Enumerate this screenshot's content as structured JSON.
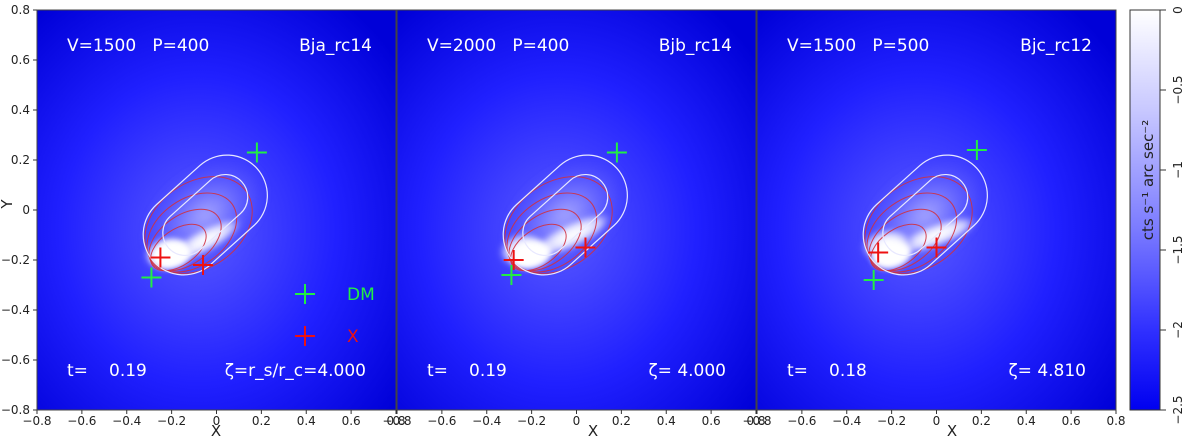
{
  "colors": {
    "background": "#0000ff",
    "core": "#ffffff",
    "contour_gas": "#d03040",
    "contour_mass": "#e8e8ff",
    "marker_dm": "#22ee44",
    "marker_x": "#ee1111",
    "text": "#ffffff"
  },
  "chart_data": [
    {
      "type": "heatmap",
      "panel_title": "Bja_rc14",
      "params": "V=1500   P=400",
      "time_label": "t=",
      "time_value": "0.19",
      "xi_label": "ζ=r_s/r_c=4.000",
      "xlabel": "X",
      "ylabel": "Y",
      "xlim": [
        -0.8,
        0.8
      ],
      "ylim": [
        -0.8,
        0.8
      ],
      "dm_points": [
        {
          "x": 0.18,
          "y": 0.23
        },
        {
          "x": -0.29,
          "y": -0.27
        }
      ],
      "x_points": [
        {
          "x": -0.25,
          "y": -0.19
        },
        {
          "x": -0.06,
          "y": -0.22
        }
      ],
      "legend": [
        {
          "label": "DM",
          "color": "#22ee44"
        },
        {
          "label": "X",
          "color": "#ee1111"
        }
      ]
    },
    {
      "type": "heatmap",
      "panel_title": "Bjb_rc14",
      "params": "V=2000   P=400",
      "time_label": "t=",
      "time_value": "0.19",
      "xi_label": "ζ= 4.000",
      "xlabel": "X",
      "xlim": [
        -0.8,
        0.8
      ],
      "ylim": [
        -0.8,
        0.8
      ],
      "dm_points": [
        {
          "x": 0.18,
          "y": 0.23
        },
        {
          "x": -0.29,
          "y": -0.26
        }
      ],
      "x_points": [
        {
          "x": -0.28,
          "y": -0.2
        },
        {
          "x": 0.04,
          "y": -0.15
        }
      ]
    },
    {
      "type": "heatmap",
      "panel_title": "Bjc_rc12",
      "params": "V=1500   P=500",
      "time_label": "t=",
      "time_value": "0.18",
      "xi_label": "ζ= 4.810",
      "xlabel": "X",
      "xlim": [
        -0.8,
        0.8
      ],
      "ylim": [
        -0.8,
        0.8
      ],
      "dm_points": [
        {
          "x": 0.18,
          "y": 0.24
        },
        {
          "x": -0.28,
          "y": -0.28
        }
      ],
      "x_points": [
        {
          "x": -0.26,
          "y": -0.17
        },
        {
          "x": 0.0,
          "y": -0.15
        }
      ]
    }
  ],
  "axes": {
    "x_ticks": [
      "−0.8",
      "−0.6",
      "−0.4",
      "−0.2",
      "0",
      "0.2",
      "0.4",
      "0.6",
      "0.8"
    ],
    "y_ticks": [
      "0.8",
      "0.6",
      "0.4",
      "0.2",
      "0",
      "−0.2",
      "−0.4",
      "−0.6",
      "−0.8"
    ]
  },
  "colorbar": {
    "label": "cts s⁻¹ arc sec⁻²",
    "ticks": [
      "0",
      "−0.5",
      "−1",
      "−1.5",
      "−2",
      "−2.5"
    ],
    "range": [
      -2.5,
      0
    ]
  }
}
